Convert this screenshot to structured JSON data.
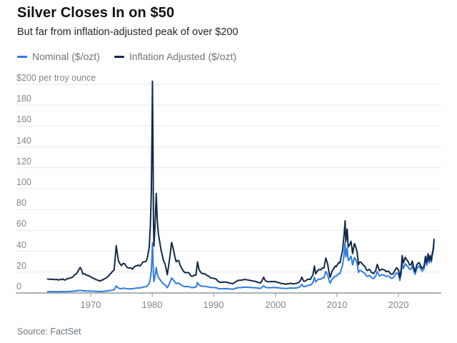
{
  "header": {
    "title": "Silver Closes In on $50",
    "subtitle": "But far from inflation-adjusted peak of over $200"
  },
  "legend": {
    "items": [
      {
        "label": "Nominal ($/ozt)",
        "color": "#2E7CE0"
      },
      {
        "label": "Inflation Adjusted ($/ozt)",
        "color": "#12294A"
      }
    ]
  },
  "footer": {
    "source": "Source: FactSet"
  },
  "colors": {
    "nominal_line": "#2E7CE0",
    "adjusted_line": "#12294A",
    "gridline": "#E6E8EA",
    "axis_line": "#788389",
    "tick": "#8E989E",
    "axis_text": "#7E878D"
  },
  "chart_data": {
    "type": "line",
    "title": "Silver Closes In on $50",
    "subtitle": "But far from inflation-adjusted peak of over $200",
    "ylabel_unit": "$200 per troy ounce",
    "ylim": [
      0,
      200
    ],
    "x_range_years": [
      1963,
      2025.8
    ],
    "grid": "horizontal",
    "legend_position": "top-left",
    "x_ticks": [
      "1970",
      "1980",
      "1990",
      "2000",
      "2010",
      "2020"
    ],
    "x_tick_years": [
      1970,
      1980,
      1990,
      2000,
      2010,
      2020
    ],
    "y_ticks": [
      {
        "label": "$200 per troy ounce",
        "value": 200
      },
      {
        "label": "180",
        "value": 180
      },
      {
        "label": "160",
        "value": 160
      },
      {
        "label": "140",
        "value": 140
      },
      {
        "label": "120",
        "value": 120
      },
      {
        "label": "100",
        "value": 100
      },
      {
        "label": "80",
        "value": 80
      },
      {
        "label": "60",
        "value": 60
      },
      {
        "label": "40",
        "value": 40
      },
      {
        "label": "20",
        "value": 20
      },
      {
        "label": "0",
        "value": 0
      }
    ],
    "series": [
      {
        "name": "Nominal ($/ozt)",
        "color": "#2E7CE0",
        "point_index": 1
      },
      {
        "name": "Inflation Adjusted ($/ozt)",
        "color": "#12294A",
        "point_index": 2
      }
    ],
    "points_format": [
      "year",
      "nominal_usd_per_ozt",
      "inflation_adjusted_usd_per_ozt"
    ],
    "points": [
      [
        1963.0,
        1.3,
        13.4
      ],
      [
        1964.0,
        1.3,
        13.2
      ],
      [
        1965.0,
        1.3,
        13.0
      ],
      [
        1966.0,
        1.3,
        12.8
      ],
      [
        1966.9,
        1.6,
        14.8
      ],
      [
        1967.4,
        1.9,
        17.6
      ],
      [
        1967.8,
        2.1,
        19.5
      ],
      [
        1968.3,
        2.6,
        24.5
      ],
      [
        1968.7,
        2.0,
        18.3
      ],
      [
        1969.3,
        1.9,
        17.0
      ],
      [
        1970.0,
        1.8,
        15.6
      ],
      [
        1970.6,
        1.7,
        13.9
      ],
      [
        1971.3,
        1.4,
        11.8
      ],
      [
        1972.0,
        1.6,
        12.6
      ],
      [
        1972.8,
        2.0,
        15.6
      ],
      [
        1973.4,
        2.6,
        19.5
      ],
      [
        1973.8,
        3.0,
        21.8
      ],
      [
        1974.15,
        6.7,
        45.3
      ],
      [
        1974.5,
        4.7,
        31.0
      ],
      [
        1975.0,
        4.1,
        26.2
      ],
      [
        1975.5,
        4.5,
        28.0
      ],
      [
        1976.2,
        4.0,
        24.0
      ],
      [
        1976.8,
        3.9,
        22.8
      ],
      [
        1977.5,
        4.7,
        26.0
      ],
      [
        1978.2,
        5.1,
        27.2
      ],
      [
        1978.8,
        5.9,
        30.0
      ],
      [
        1979.2,
        6.9,
        33.5
      ],
      [
        1979.5,
        9.2,
        43.5
      ],
      [
        1979.7,
        14.0,
        65.0
      ],
      [
        1979.85,
        21.0,
        96.0
      ],
      [
        1979.95,
        34.0,
        150.0
      ],
      [
        1980.04,
        48.0,
        203.0
      ],
      [
        1980.12,
        35.0,
        146.0
      ],
      [
        1980.2,
        17.0,
        70.0
      ],
      [
        1980.28,
        11.0,
        45.0
      ],
      [
        1980.45,
        16.0,
        64.5
      ],
      [
        1980.65,
        24.5,
        95.5
      ],
      [
        1980.8,
        18.5,
        71.0
      ],
      [
        1981.0,
        15.0,
        56.5
      ],
      [
        1981.4,
        11.5,
        42.0
      ],
      [
        1981.8,
        8.8,
        31.5
      ],
      [
        1982.1,
        7.8,
        27.5
      ],
      [
        1982.45,
        5.0,
        17.5
      ],
      [
        1982.75,
        8.5,
        29.5
      ],
      [
        1983.15,
        14.4,
        48.5
      ],
      [
        1983.5,
        12.0,
        40.0
      ],
      [
        1983.9,
        9.0,
        29.8
      ],
      [
        1984.3,
        9.5,
        31.0
      ],
      [
        1984.8,
        7.3,
        23.5
      ],
      [
        1985.3,
        6.1,
        19.5
      ],
      [
        1985.8,
        6.2,
        19.6
      ],
      [
        1986.3,
        5.2,
        16.2
      ],
      [
        1986.8,
        5.5,
        17.0
      ],
      [
        1987.1,
        5.6,
        17.1
      ],
      [
        1987.35,
        10.0,
        29.8
      ],
      [
        1987.6,
        7.6,
        22.5
      ],
      [
        1988.0,
        6.6,
        19.0
      ],
      [
        1988.6,
        6.4,
        18.2
      ],
      [
        1989.2,
        5.8,
        16.0
      ],
      [
        1989.8,
        5.2,
        14.2
      ],
      [
        1990.4,
        5.0,
        13.2
      ],
      [
        1991.0,
        4.0,
        10.3
      ],
      [
        1991.6,
        4.1,
        10.4
      ],
      [
        1992.2,
        4.1,
        10.2
      ],
      [
        1992.9,
        3.7,
        9.1
      ],
      [
        1993.1,
        3.6,
        8.8
      ],
      [
        1993.5,
        4.4,
        10.6
      ],
      [
        1994.0,
        5.1,
        12.1
      ],
      [
        1994.6,
        5.3,
        12.4
      ],
      [
        1995.2,
        5.6,
        12.9
      ],
      [
        1995.8,
        5.3,
        12.1
      ],
      [
        1996.4,
        5.1,
        11.4
      ],
      [
        1997.0,
        4.8,
        10.6
      ],
      [
        1997.6,
        4.4,
        9.6
      ],
      [
        1998.1,
        7.0,
        15.1
      ],
      [
        1998.5,
        5.3,
        11.4
      ],
      [
        1999.1,
        5.1,
        10.8
      ],
      [
        1999.7,
        5.2,
        10.9
      ],
      [
        2000.3,
        5.0,
        10.2
      ],
      [
        2001.0,
        4.5,
        9.0
      ],
      [
        2001.7,
        4.2,
        8.3
      ],
      [
        2002.3,
        4.6,
        9.0
      ],
      [
        2003.0,
        4.6,
        8.8
      ],
      [
        2003.6,
        5.0,
        9.5
      ],
      [
        2004.1,
        6.5,
        12.1
      ],
      [
        2004.3,
        8.2,
        15.2
      ],
      [
        2004.6,
        6.1,
        11.2
      ],
      [
        2005.1,
        7.0,
        12.6
      ],
      [
        2005.7,
        7.3,
        13.0
      ],
      [
        2006.1,
        9.8,
        17.1
      ],
      [
        2006.35,
        14.9,
        25.8
      ],
      [
        2006.55,
        10.7,
        18.4
      ],
      [
        2006.9,
        12.8,
        21.8
      ],
      [
        2007.4,
        13.2,
        22.2
      ],
      [
        2007.9,
        14.5,
        24.0
      ],
      [
        2008.2,
        20.7,
        33.5
      ],
      [
        2008.5,
        17.2,
        27.6
      ],
      [
        2008.7,
        12.8,
        20.5
      ],
      [
        2008.9,
        9.3,
        15.0
      ],
      [
        2009.2,
        13.0,
        20.8
      ],
      [
        2009.7,
        16.2,
        25.7
      ],
      [
        2010.1,
        17.5,
        27.5
      ],
      [
        2010.5,
        18.5,
        28.8
      ],
      [
        2010.9,
        26.0,
        40.0
      ],
      [
        2011.1,
        34.0,
        51.5
      ],
      [
        2011.25,
        42.0,
        62.5
      ],
      [
        2011.33,
        48.4,
        69.2
      ],
      [
        2011.45,
        34.5,
        49.3
      ],
      [
        2011.6,
        40.0,
        57.0
      ],
      [
        2011.67,
        43.0,
        61.2
      ],
      [
        2011.85,
        31.0,
        44.0
      ],
      [
        2012.1,
        33.0,
        46.5
      ],
      [
        2012.3,
        35.3,
        49.5
      ],
      [
        2012.55,
        27.0,
        37.8
      ],
      [
        2012.85,
        34.0,
        47.3
      ],
      [
        2013.1,
        31.5,
        43.5
      ],
      [
        2013.3,
        28.3,
        39.0
      ],
      [
        2013.5,
        19.7,
        27.2
      ],
      [
        2013.9,
        21.5,
        29.5
      ],
      [
        2014.3,
        19.7,
        26.8
      ],
      [
        2014.8,
        16.2,
        22.0
      ],
      [
        2015.2,
        16.7,
        22.6
      ],
      [
        2015.6,
        14.6,
        19.7
      ],
      [
        2015.95,
        13.8,
        18.6
      ],
      [
        2016.3,
        16.2,
        21.6
      ],
      [
        2016.55,
        20.6,
        27.4
      ],
      [
        2016.9,
        16.3,
        21.5
      ],
      [
        2017.3,
        17.5,
        22.9
      ],
      [
        2017.8,
        16.8,
        21.8
      ],
      [
        2018.2,
        16.4,
        21.0
      ],
      [
        2018.75,
        14.2,
        18.1
      ],
      [
        2019.2,
        15.1,
        19.1
      ],
      [
        2019.7,
        19.3,
        24.2
      ],
      [
        2020.0,
        17.9,
        22.3
      ],
      [
        2020.22,
        12.0,
        14.9
      ],
      [
        2020.45,
        18.5,
        22.9
      ],
      [
        2020.6,
        29.1,
        35.9
      ],
      [
        2020.8,
        23.5,
        28.9
      ],
      [
        2021.1,
        28.0,
        34.2
      ],
      [
        2021.4,
        25.9,
        31.3
      ],
      [
        2021.8,
        22.5,
        26.9
      ],
      [
        2022.05,
        23.0,
        27.2
      ],
      [
        2022.25,
        26.2,
        30.6
      ],
      [
        2022.5,
        20.8,
        24.1
      ],
      [
        2022.7,
        17.9,
        20.6
      ],
      [
        2023.0,
        24.0,
        27.3
      ],
      [
        2023.35,
        25.9,
        29.2
      ],
      [
        2023.7,
        22.3,
        25.0
      ],
      [
        2023.85,
        21.0,
        23.5
      ],
      [
        2024.15,
        23.0,
        25.5
      ],
      [
        2024.4,
        32.0,
        35.2
      ],
      [
        2024.6,
        26.6,
        29.2
      ],
      [
        2024.8,
        34.5,
        37.6
      ],
      [
        2025.0,
        28.9,
        31.2
      ],
      [
        2025.15,
        33.5,
        35.9
      ],
      [
        2025.35,
        29.6,
        31.5
      ],
      [
        2025.5,
        36.0,
        38.2
      ],
      [
        2025.6,
        38.5,
        40.6
      ],
      [
        2025.68,
        42.0,
        44.0
      ],
      [
        2025.75,
        47.5,
        49.0
      ],
      [
        2025.78,
        50.1,
        51.6
      ]
    ]
  }
}
